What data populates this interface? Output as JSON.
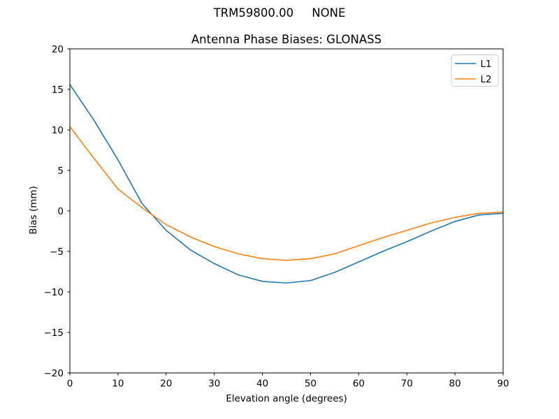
{
  "figure": {
    "suptitle": "TRM59800.00     NONE"
  },
  "chart_data": {
    "type": "line",
    "title": "Antenna Phase Biases: GLONASS",
    "xlabel": "Elevation angle (degrees)",
    "ylabel": "Bias (mm)",
    "xlim": [
      0,
      90
    ],
    "ylim": [
      -20,
      20
    ],
    "xticks": [
      0,
      10,
      20,
      30,
      40,
      50,
      60,
      70,
      80,
      90
    ],
    "yticks": [
      -20,
      -15,
      -10,
      -5,
      0,
      5,
      10,
      15,
      20
    ],
    "grid": false,
    "legend_position": "upper right",
    "x": [
      0,
      5,
      10,
      15,
      20,
      25,
      30,
      35,
      40,
      45,
      50,
      55,
      60,
      65,
      70,
      75,
      80,
      85,
      90
    ],
    "series": [
      {
        "name": "L1",
        "color": "#1f77b4",
        "values": [
          15.6,
          11.2,
          6.3,
          0.9,
          -2.4,
          -4.8,
          -6.5,
          -7.9,
          -8.7,
          -8.9,
          -8.6,
          -7.6,
          -6.3,
          -5.0,
          -3.8,
          -2.5,
          -1.3,
          -0.5,
          -0.3
        ]
      },
      {
        "name": "L2",
        "color": "#ff7f0e",
        "values": [
          10.4,
          6.5,
          2.7,
          0.4,
          -1.7,
          -3.2,
          -4.4,
          -5.3,
          -5.9,
          -6.1,
          -5.9,
          -5.3,
          -4.3,
          -3.3,
          -2.4,
          -1.5,
          -0.8,
          -0.3,
          -0.15
        ]
      }
    ]
  }
}
